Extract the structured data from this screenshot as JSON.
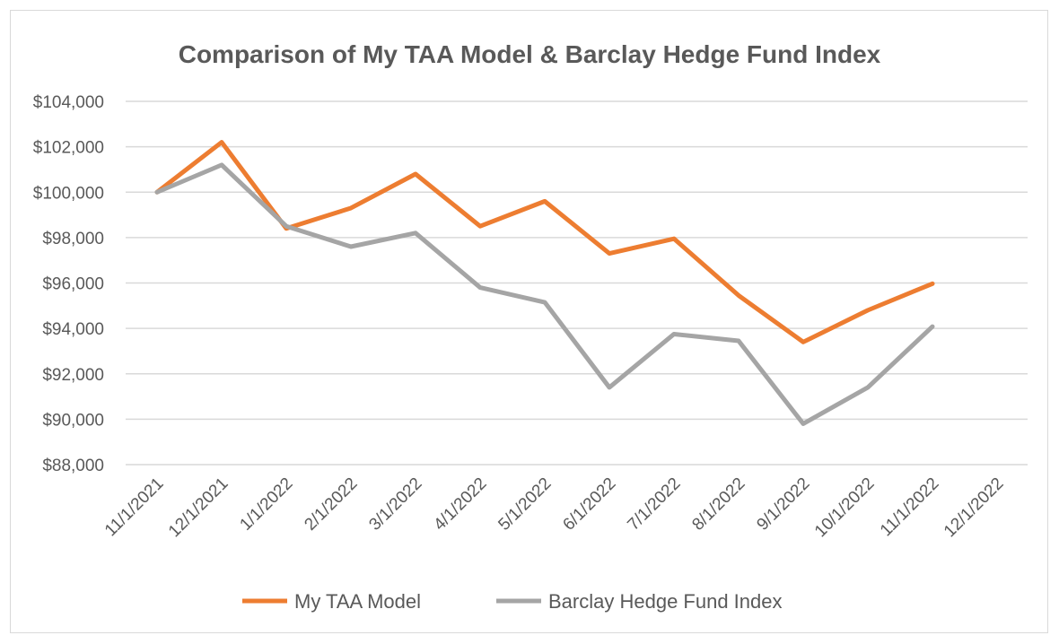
{
  "chart_data": {
    "type": "line",
    "title": "Comparison of My TAA Model & Barclay Hedge Fund Index",
    "xlabel": "",
    "ylabel": "",
    "categories": [
      "11/1/2021",
      "12/1/2021",
      "1/1/2022",
      "2/1/2022",
      "3/1/2022",
      "4/1/2022",
      "5/1/2022",
      "6/1/2022",
      "7/1/2022",
      "8/1/2022",
      "9/1/2022",
      "10/1/2022",
      "11/1/2022",
      "12/1/2022"
    ],
    "ylim": [
      88000,
      104000
    ],
    "yticks": [
      88000,
      90000,
      92000,
      94000,
      96000,
      98000,
      100000,
      102000,
      104000
    ],
    "ytick_labels": [
      "$88,000",
      "$90,000",
      "$92,000",
      "$94,000",
      "$96,000",
      "$98,000",
      "$100,000",
      "$102,000",
      "$104,000"
    ],
    "grid": true,
    "legend_position": "bottom",
    "series": [
      {
        "name": "My TAA Model",
        "color": "#ed7d31",
        "values": [
          100000,
          102200,
          98400,
          99300,
          100800,
          98500,
          99600,
          97300,
          97950,
          95450,
          93400,
          94800,
          95970,
          null
        ]
      },
      {
        "name": "Barclay Hedge Fund Index",
        "color": "#a5a5a5",
        "values": [
          100000,
          101200,
          98500,
          97600,
          98200,
          95800,
          95150,
          91400,
          93750,
          93450,
          89800,
          91400,
          94080,
          null
        ]
      }
    ]
  }
}
